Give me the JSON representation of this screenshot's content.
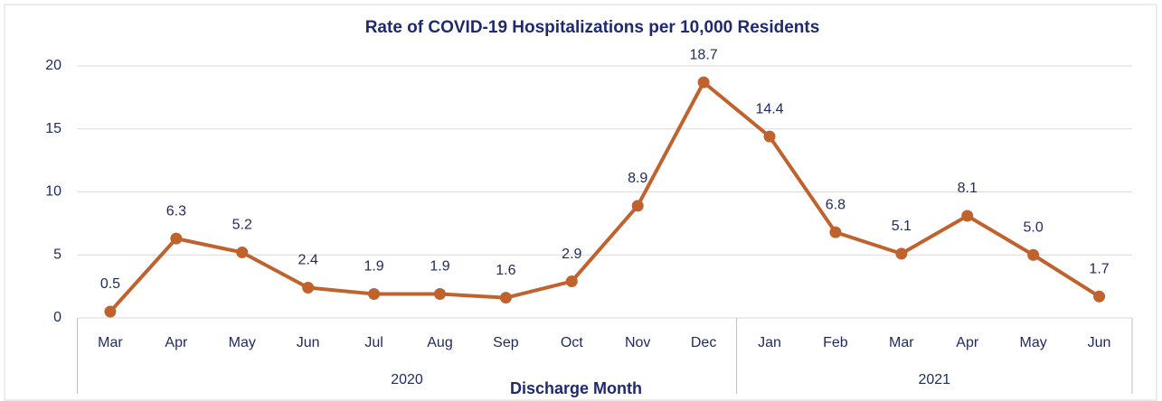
{
  "chart_data": {
    "type": "line",
    "title": "Rate of COVID-19 Hospitalizations per 10,000 Residents",
    "x_label": "Discharge Month",
    "categories": [
      "Mar",
      "Apr",
      "May",
      "Jun",
      "Jul",
      "Aug",
      "Sep",
      "Oct",
      "Nov",
      "Dec",
      "Jan",
      "Feb",
      "Mar",
      "Apr",
      "May",
      "Jun"
    ],
    "groups": [
      {
        "name": "2020",
        "count": 10
      },
      {
        "name": "2021",
        "count": 6
      }
    ],
    "values": [
      0.5,
      6.3,
      5.2,
      2.4,
      1.9,
      1.9,
      1.6,
      2.9,
      8.9,
      18.7,
      14.4,
      6.8,
      5.1,
      8.1,
      5.0,
      1.7
    ],
    "value_labels": [
      "0.5",
      "6.3",
      "5.2",
      "2.4",
      "1.9",
      "1.9",
      "1.6",
      "2.9",
      "8.9",
      "18.7",
      "14.4",
      "6.8",
      "5.1",
      "8.1",
      "5.0",
      "1.7"
    ],
    "color": "#c0622e",
    "ylim": [
      0,
      20
    ],
    "yticks": [
      0,
      5,
      10,
      15,
      20
    ],
    "grid": true
  }
}
